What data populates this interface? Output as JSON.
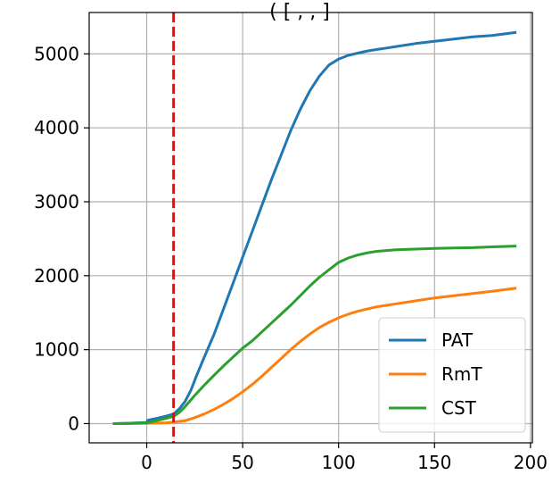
{
  "chart_data": {
    "type": "line",
    "title": "(   [    ,     ,     ]",
    "xlabel": "",
    "ylabel": "",
    "xlim": [
      -30,
      201
    ],
    "ylim": [
      -260,
      5560
    ],
    "xticks": [
      0,
      50,
      100,
      150,
      200
    ],
    "yticks": [
      0,
      1000,
      2000,
      3000,
      4000,
      5000
    ],
    "grid": true,
    "legend_position": "lower-right",
    "vline": {
      "x": 14,
      "color": "#ff0000",
      "style": "dashed"
    },
    "series": [
      {
        "name": "PAT",
        "color": "#1f77b4",
        "x": [
          -17,
          -10,
          -5,
          0,
          0.5,
          5,
          10,
          14,
          17,
          20,
          23,
          26,
          30,
          35,
          40,
          45,
          50,
          55,
          60,
          65,
          70,
          75,
          80,
          85,
          90,
          95,
          100,
          105,
          110,
          115,
          120,
          125,
          130,
          140,
          150,
          160,
          170,
          180,
          192
        ],
        "y": [
          0,
          5,
          10,
          15,
          45,
          70,
          100,
          130,
          200,
          300,
          450,
          650,
          900,
          1200,
          1550,
          1900,
          2250,
          2600,
          2950,
          3300,
          3630,
          3960,
          4250,
          4500,
          4700,
          4850,
          4930,
          4980,
          5010,
          5040,
          5060,
          5080,
          5100,
          5140,
          5170,
          5200,
          5230,
          5250,
          5290
        ]
      },
      {
        "name": "RmT",
        "color": "#ff7f0e",
        "x": [
          -17,
          -10,
          0,
          10,
          14,
          20,
          25,
          30,
          35,
          40,
          45,
          50,
          55,
          60,
          65,
          70,
          75,
          80,
          85,
          90,
          95,
          100,
          105,
          110,
          120,
          130,
          140,
          150,
          160,
          170,
          180,
          192
        ],
        "y": [
          0,
          0,
          5,
          10,
          20,
          40,
          80,
          130,
          190,
          260,
          340,
          430,
          530,
          640,
          760,
          880,
          1000,
          1110,
          1210,
          1300,
          1370,
          1430,
          1480,
          1520,
          1580,
          1620,
          1660,
          1700,
          1730,
          1760,
          1790,
          1830
        ]
      },
      {
        "name": "CST",
        "color": "#2ca02c",
        "x": [
          -17,
          -10,
          0,
          5,
          10,
          14,
          17,
          20,
          25,
          30,
          35,
          40,
          45,
          50,
          55,
          60,
          65,
          70,
          75,
          80,
          85,
          90,
          95,
          100,
          105,
          110,
          115,
          120,
          130,
          140,
          150,
          160,
          170,
          180,
          192
        ],
        "y": [
          0,
          3,
          10,
          40,
          70,
          100,
          150,
          230,
          380,
          520,
          650,
          780,
          900,
          1020,
          1120,
          1240,
          1360,
          1480,
          1600,
          1730,
          1860,
          1980,
          2080,
          2180,
          2240,
          2280,
          2310,
          2330,
          2350,
          2360,
          2370,
          2375,
          2380,
          2390,
          2400
        ]
      }
    ]
  }
}
